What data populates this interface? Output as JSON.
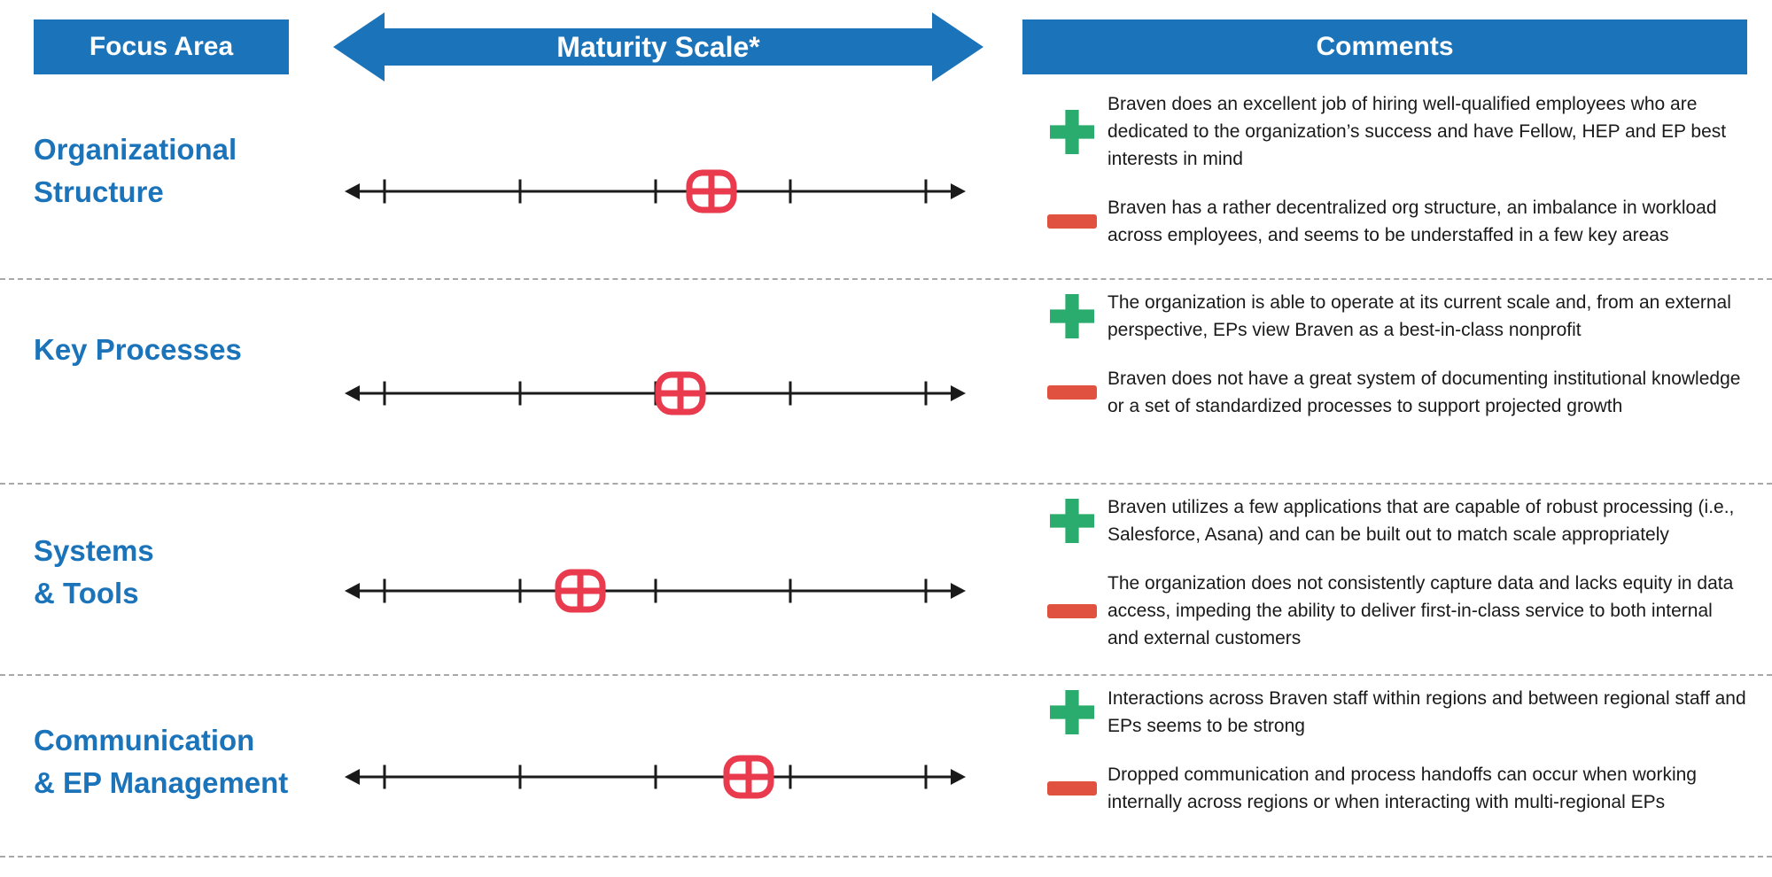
{
  "header": {
    "focus_area_label": "Focus Area",
    "maturity_scale_label": "Maturity Scale*",
    "comments_label": "Comments"
  },
  "colors": {
    "blue": "#1B73B9",
    "plus_green": "#29AC6E",
    "minus_red": "#E0523F",
    "marker_red": "#E93A4E"
  },
  "rows": [
    {
      "label": "Organizational\nStructure",
      "marker_percent": 59,
      "plus_comment": "Braven does an excellent job of hiring well-qualified employees who are dedicated to the organization’s success and have Fellow, HEP and EP best interests in mind",
      "minus_comment": "Braven has a rather decentralized org structure, an imbalance in workload across employees, and seems to be understaffed in a few key areas"
    },
    {
      "label": "Key Processes",
      "marker_percent": 54,
      "plus_comment": "The organization is able to operate at its current scale and, from an external perspective, EPs view Braven as a best-in-class nonprofit",
      "minus_comment": "Braven does not have a great system of documenting institutional knowledge or a set of standardized processes to support projected growth"
    },
    {
      "label": "Systems\n& Tools",
      "marker_percent": 38,
      "plus_comment": "Braven utilizes a few applications that are capable of robust processing (i.e., Salesforce, Asana) and can be built out to match scale appropriately",
      "minus_comment": "The organization does not consistently capture data and lacks equity in data access, impeding the ability to deliver first-in-class service to both internal and external customers"
    },
    {
      "label": "Communication\n& EP Management",
      "marker_percent": 65,
      "plus_comment": "Interactions across Braven staff within regions and between regional staff and EPs seems to be strong",
      "minus_comment": "Dropped communication and process handoffs can occur when working internally across regions or when interacting with multi-regional EPs"
    }
  ]
}
